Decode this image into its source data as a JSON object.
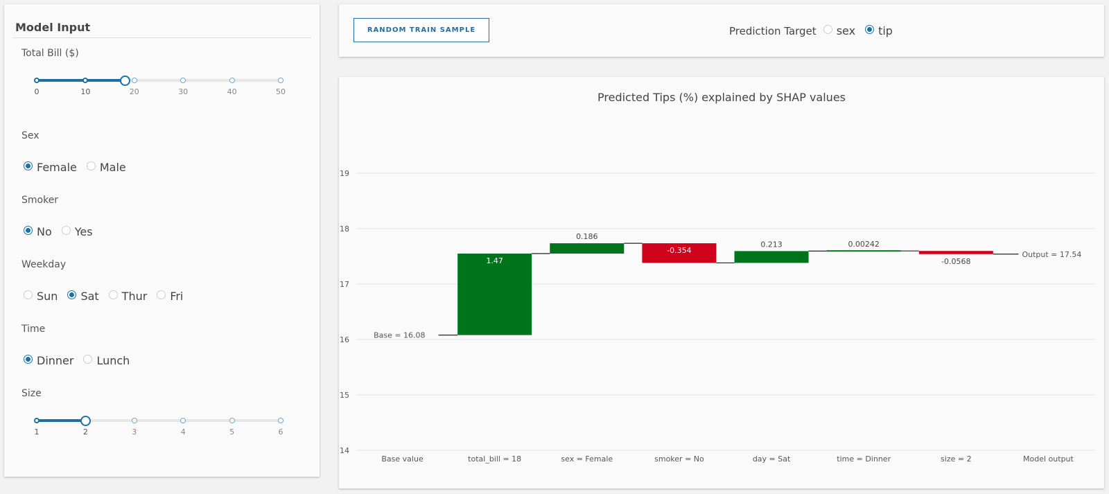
{
  "model_input": {
    "title": "Model Input",
    "total_bill": {
      "label": "Total Bill ($)",
      "min": 0,
      "max": 50,
      "value": 18,
      "marks": [
        "0",
        "10",
        "20",
        "30",
        "40",
        "50"
      ]
    },
    "sex": {
      "label": "Sex",
      "options": [
        "Female",
        "Male"
      ],
      "selected": "Female"
    },
    "smoker": {
      "label": "Smoker",
      "options": [
        "No",
        "Yes"
      ],
      "selected": "No"
    },
    "weekday": {
      "label": "Weekday",
      "options": [
        "Sun",
        "Sat",
        "Thur",
        "Fri"
      ],
      "selected": "Sat"
    },
    "time": {
      "label": "Time",
      "options": [
        "Dinner",
        "Lunch"
      ],
      "selected": "Dinner"
    },
    "size": {
      "label": "Size",
      "min": 1,
      "max": 6,
      "value": 2,
      "marks": [
        "1",
        "2",
        "3",
        "4",
        "5",
        "6"
      ]
    }
  },
  "toolbar": {
    "random_label": "RANDOM TRAIN SAMPLE",
    "target_label": "Prediction Target",
    "target_options": [
      "sex",
      "tip"
    ],
    "target_selected": "tip"
  },
  "colors": {
    "accent": "#1d6fa5",
    "positive": "#00741b",
    "negative": "#d0021b"
  },
  "chart_data": {
    "type": "waterfall",
    "title": "Predicted Tips (%) explained by SHAP values",
    "ylim": [
      14,
      19.5
    ],
    "yticks": [
      "14",
      "15",
      "16",
      "17",
      "18",
      "19"
    ],
    "grid": true,
    "base": 16.08,
    "base_label": "Base = 16.08",
    "output": 17.54,
    "output_label": "Output = 17.54",
    "categories": [
      "Base value",
      "total_bill = 18",
      "sex = Female",
      "smoker = No",
      "day = Sat",
      "time = Dinner",
      "size = 2",
      "Model output"
    ],
    "deltas": [
      1.47,
      0.186,
      -0.354,
      0.213,
      0.00242,
      -0.0568
    ],
    "delta_labels": [
      "1.47",
      "0.186",
      "-0.354",
      "0.213",
      "0.00242",
      "-0.0568"
    ]
  }
}
